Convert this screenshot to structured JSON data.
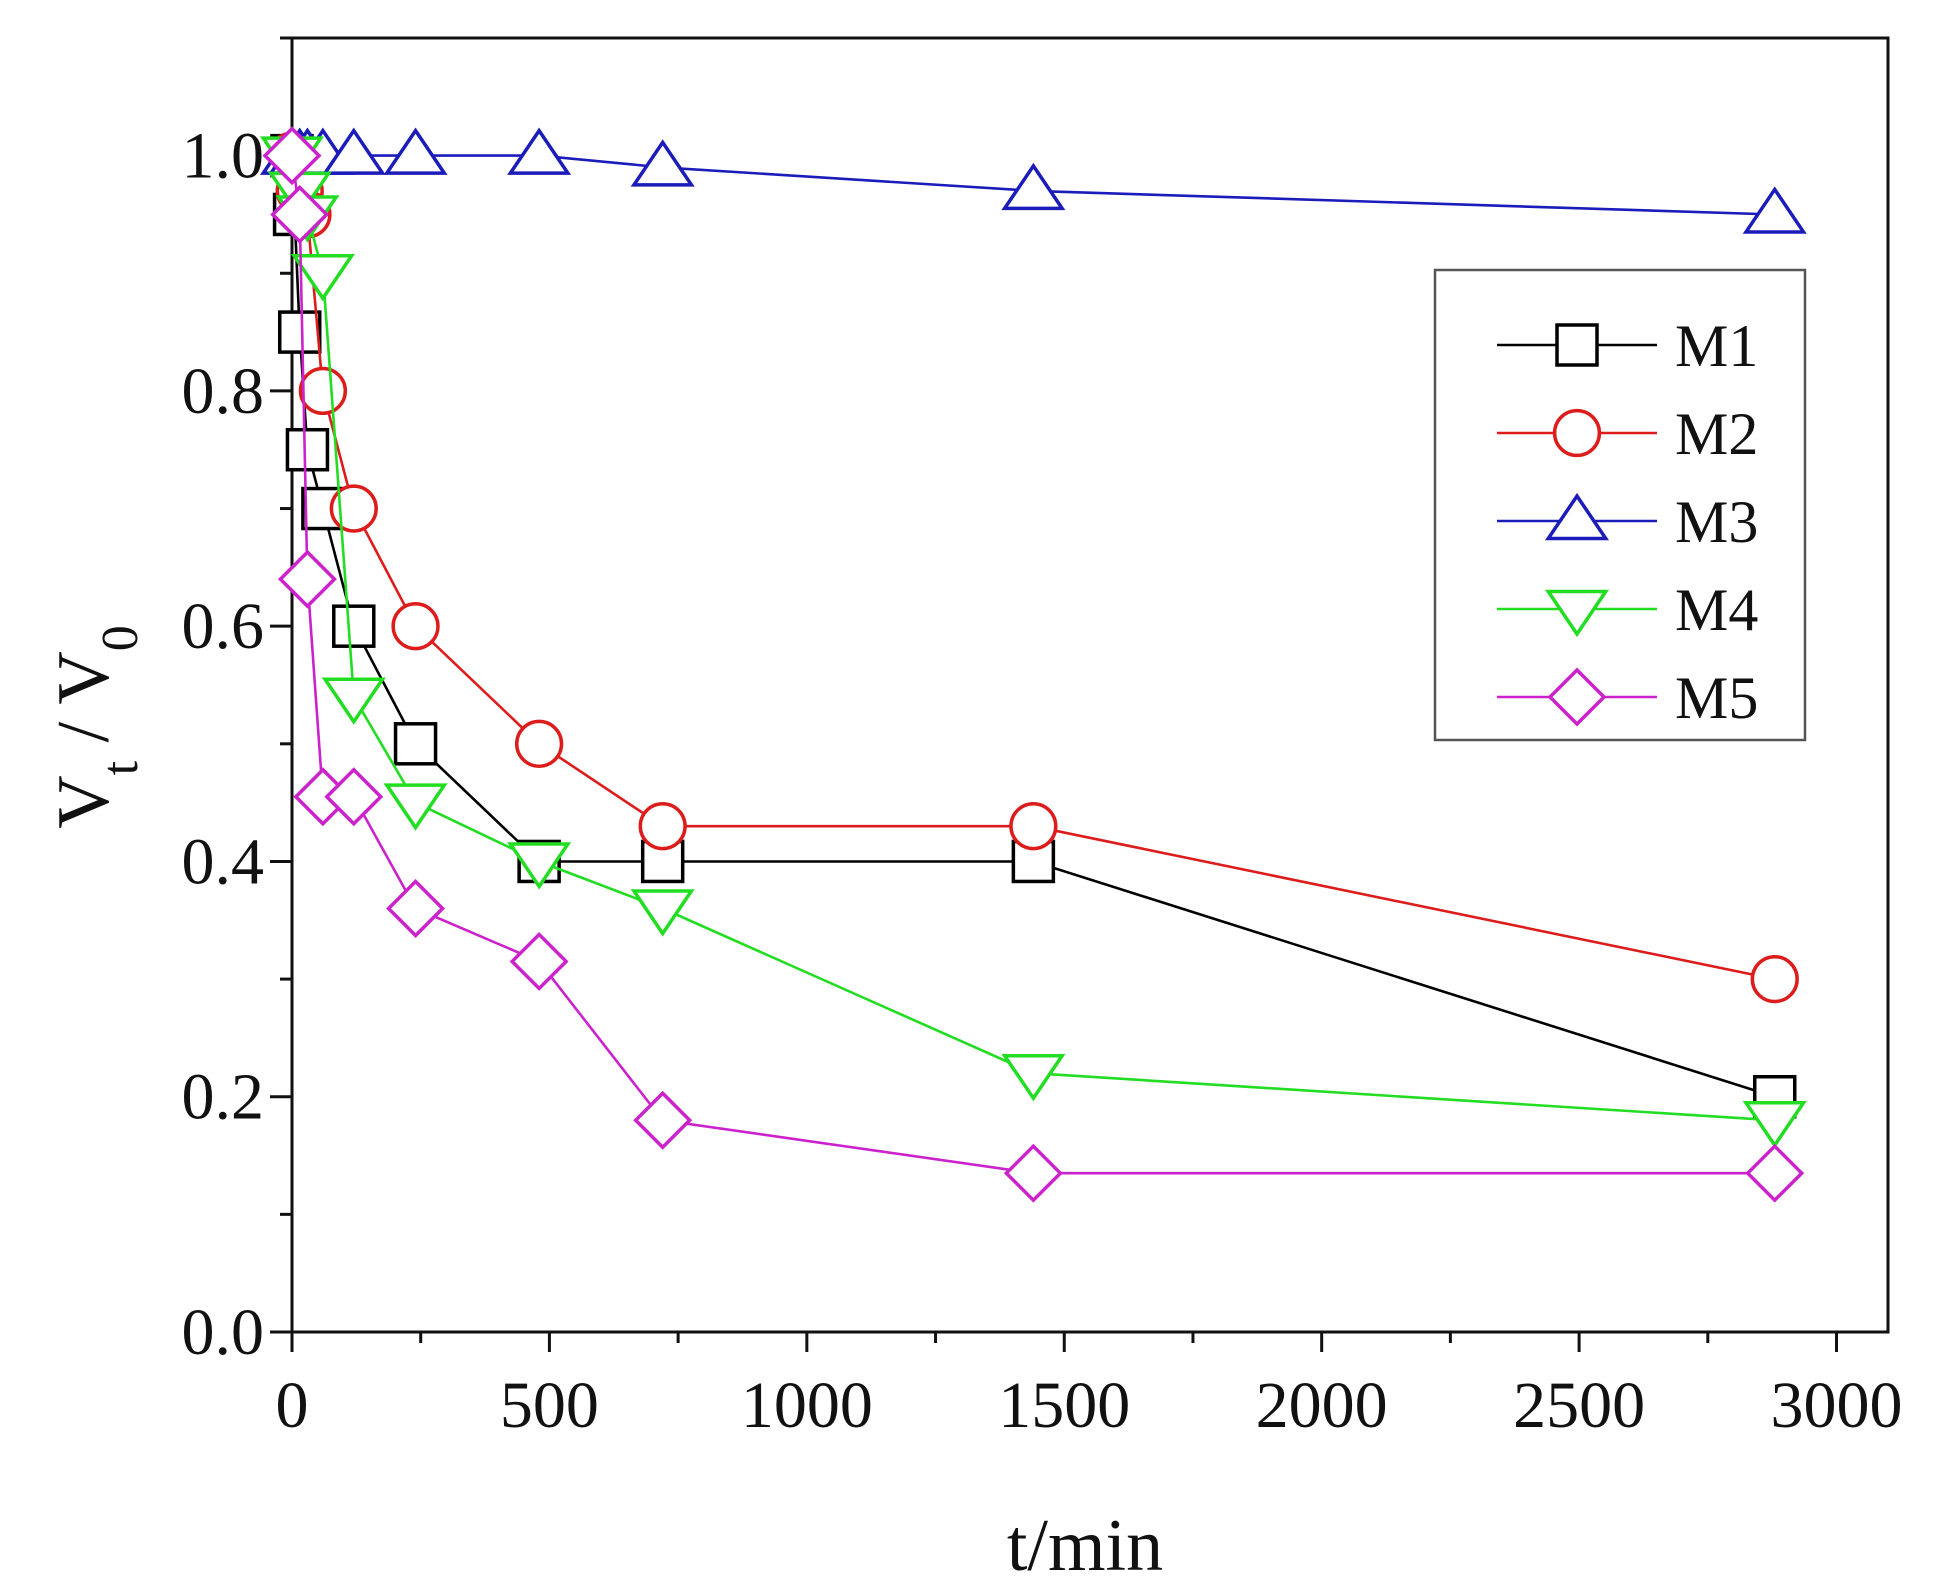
{
  "chart_data": {
    "type": "line",
    "title": "",
    "xlabel": "t/min",
    "ylabel": {
      "main": "V",
      "sub_t": "t",
      "sep": " / V",
      "sub_0": "0"
    },
    "xlim": [
      0,
      3100
    ],
    "ylim": [
      0,
      1.1
    ],
    "xticks": [
      0,
      500,
      1000,
      1500,
      2000,
      2500,
      3000
    ],
    "xtick_labels": [
      "0",
      "500",
      "1000",
      "1500",
      "2000",
      "2500",
      "3000"
    ],
    "yticks": [
      0.0,
      0.2,
      0.4,
      0.6,
      0.8,
      1.0
    ],
    "ytick_labels": [
      "0.0",
      "0.2",
      "0.4",
      "0.6",
      "0.8",
      "1.0"
    ],
    "grid": false,
    "legend_position": "right",
    "series": [
      {
        "name": "M1",
        "color": "#000000",
        "marker": "square",
        "x": [
          0,
          5,
          15,
          30,
          60,
          120,
          240,
          480,
          720,
          1440,
          2880
        ],
        "y": [
          1.0,
          0.95,
          0.85,
          0.75,
          0.7,
          0.6,
          0.5,
          0.4,
          0.4,
          0.4,
          0.2
        ]
      },
      {
        "name": "M2",
        "color": "#dd1c1c",
        "marker": "circle",
        "x": [
          0,
          15,
          30,
          60,
          120,
          240,
          480,
          720,
          1440,
          2880
        ],
        "y": [
          1.0,
          0.97,
          0.95,
          0.8,
          0.7,
          0.6,
          0.5,
          0.43,
          0.43,
          0.3
        ]
      },
      {
        "name": "M3",
        "color": "#1c1cbb",
        "marker": "triangle-up",
        "x": [
          0,
          15,
          30,
          60,
          120,
          240,
          480,
          720,
          1440,
          2880
        ],
        "y": [
          1.0,
          1.0,
          1.0,
          1.0,
          1.0,
          1.0,
          1.0,
          0.99,
          0.97,
          0.95
        ]
      },
      {
        "name": "M4",
        "color": "#22dd22",
        "marker": "triangle-down",
        "x": [
          0,
          15,
          30,
          60,
          120,
          240,
          480,
          720,
          1440,
          2880
        ],
        "y": [
          1.0,
          0.97,
          0.95,
          0.9,
          0.54,
          0.45,
          0.4,
          0.36,
          0.22,
          0.18
        ]
      },
      {
        "name": "M5",
        "color": "#cc22cc",
        "marker": "diamond",
        "x": [
          0,
          15,
          30,
          60,
          120,
          240,
          480,
          720,
          1440,
          2880
        ],
        "y": [
          1.0,
          0.95,
          0.64,
          0.455,
          0.455,
          0.36,
          0.315,
          0.18,
          0.135,
          0.135
        ]
      }
    ]
  }
}
